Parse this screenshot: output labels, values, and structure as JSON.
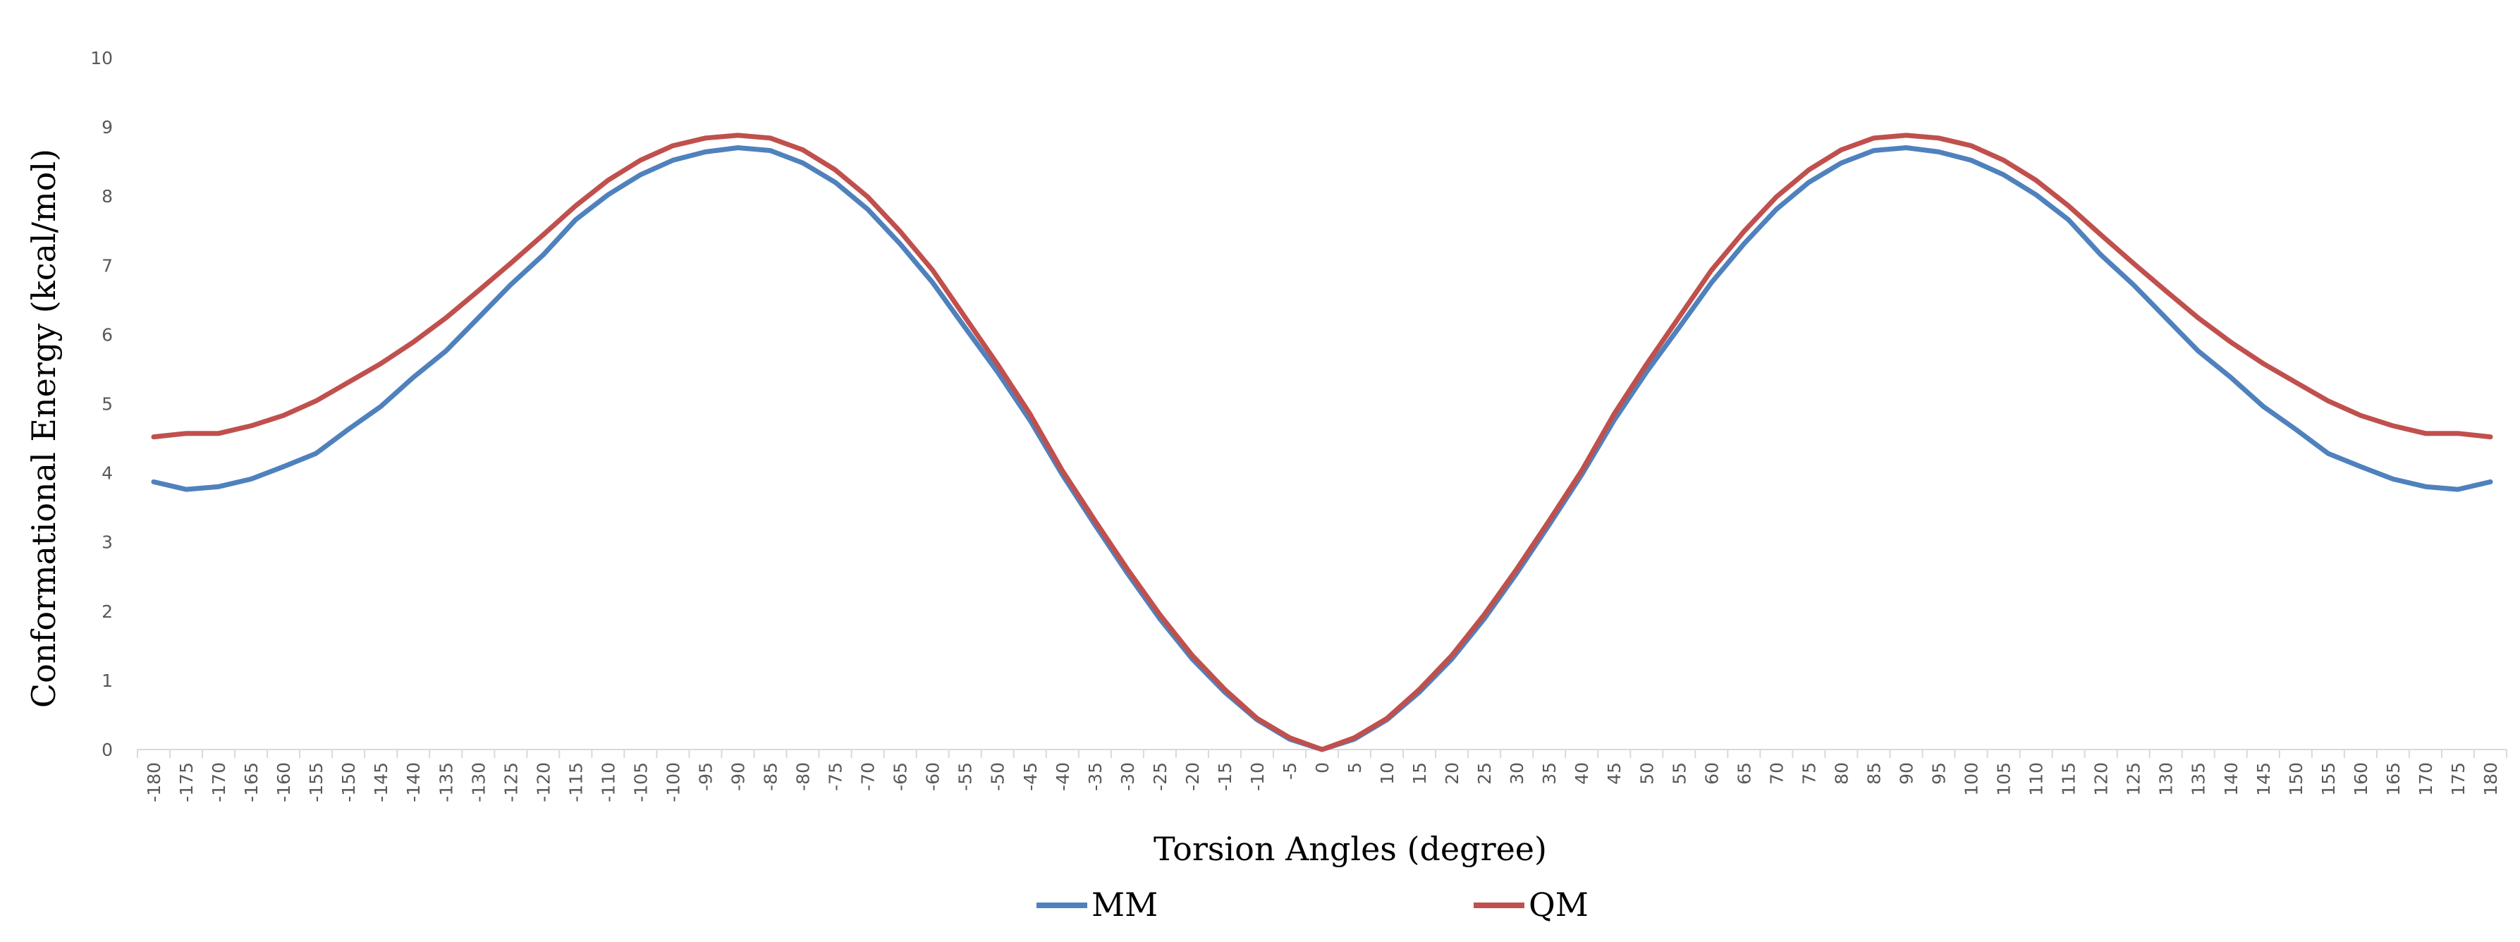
{
  "chart_data": {
    "type": "line",
    "xlabel": "Torsion Angles (degree)",
    "ylabel": "Conformational Energy (kcal/mol)",
    "ylim": [
      0,
      10
    ],
    "yticks": [
      0,
      1,
      2,
      3,
      4,
      5,
      6,
      7,
      8,
      9,
      10
    ],
    "grid": false,
    "legend_position": "bottom",
    "x": [
      -180,
      -175,
      -170,
      -165,
      -160,
      -155,
      -150,
      -145,
      -140,
      -135,
      -130,
      -125,
      -120,
      -115,
      -110,
      -105,
      -100,
      -95,
      -90,
      -85,
      -80,
      -75,
      -70,
      -65,
      -60,
      -55,
      -50,
      -45,
      -40,
      -35,
      -30,
      -25,
      -20,
      -15,
      -10,
      -5,
      0,
      5,
      10,
      15,
      20,
      25,
      30,
      35,
      40,
      45,
      50,
      55,
      60,
      65,
      70,
      75,
      80,
      85,
      90,
      95,
      100,
      105,
      110,
      115,
      120,
      125,
      130,
      135,
      140,
      145,
      150,
      155,
      160,
      165,
      170,
      175,
      180
    ],
    "series": [
      {
        "name": "MM",
        "color": "#4F81BD",
        "values": [
          3.87,
          3.76,
          3.8,
          3.91,
          4.09,
          4.28,
          4.63,
          4.96,
          5.38,
          5.76,
          6.24,
          6.72,
          7.15,
          7.66,
          8.02,
          8.31,
          8.52,
          8.64,
          8.7,
          8.66,
          8.48,
          8.2,
          7.81,
          7.31,
          6.75,
          6.1,
          5.46,
          4.76,
          3.97,
          3.25,
          2.55,
          1.89,
          1.31,
          0.83,
          0.43,
          0.15,
          0.0,
          0.15,
          0.43,
          0.83,
          1.31,
          1.89,
          2.55,
          3.25,
          3.97,
          4.76,
          5.46,
          6.1,
          6.75,
          7.31,
          7.81,
          8.2,
          8.48,
          8.66,
          8.7,
          8.64,
          8.52,
          8.31,
          8.02,
          7.66,
          7.15,
          6.72,
          6.24,
          5.76,
          5.38,
          4.96,
          4.63,
          4.28,
          4.09,
          3.91,
          3.8,
          3.76,
          3.87
        ]
      },
      {
        "name": "QM",
        "color": "#C0504D",
        "values": [
          4.52,
          4.57,
          4.57,
          4.68,
          4.83,
          5.04,
          5.31,
          5.58,
          5.89,
          6.24,
          6.63,
          7.03,
          7.44,
          7.86,
          8.23,
          8.52,
          8.73,
          8.84,
          8.88,
          8.84,
          8.67,
          8.38,
          7.99,
          7.49,
          6.93,
          6.25,
          5.57,
          4.85,
          4.03,
          3.31,
          2.61,
          1.95,
          1.36,
          0.87,
          0.45,
          0.17,
          0.0,
          0.17,
          0.45,
          0.87,
          1.36,
          1.95,
          2.61,
          3.31,
          4.03,
          4.85,
          5.57,
          6.25,
          6.93,
          7.49,
          7.99,
          8.38,
          8.67,
          8.84,
          8.88,
          8.84,
          8.73,
          8.52,
          8.23,
          7.86,
          7.44,
          7.03,
          6.63,
          6.24,
          5.89,
          5.58,
          5.31,
          5.04,
          4.83,
          4.68,
          4.57,
          4.57,
          4.52
        ]
      }
    ]
  }
}
